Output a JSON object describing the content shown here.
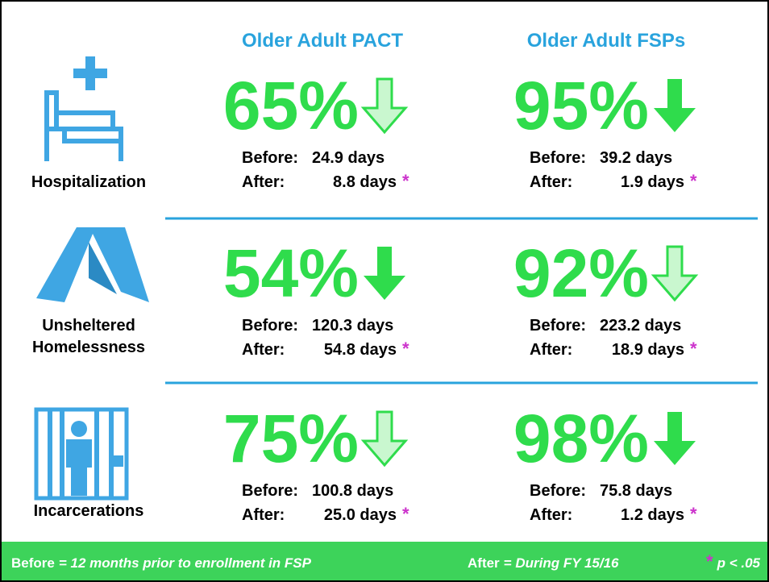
{
  "columns": [
    "Older Adult PACT",
    "Older Adult FSPs"
  ],
  "rows": [
    {
      "label": [
        "Hospitalization"
      ],
      "cells": [
        {
          "percent": "65%",
          "arrow": "hollow",
          "before_label": "Before:",
          "before": "24.9 days",
          "after_label": "After:",
          "after": "8.8 days",
          "mark": "*"
        },
        {
          "percent": "95%",
          "arrow": "solid",
          "before_label": "Before:",
          "before": "39.2 days",
          "after_label": "After:",
          "after": "1.9 days",
          "mark": "*"
        }
      ]
    },
    {
      "label": [
        "Unsheltered",
        "Homelessness"
      ],
      "cells": [
        {
          "percent": "54%",
          "arrow": "solid",
          "before_label": "Before:",
          "before": "120.3 days",
          "after_label": "After:",
          "after": "54.8 days",
          "mark": "*"
        },
        {
          "percent": "92%",
          "arrow": "hollow",
          "before_label": "Before:",
          "before": "223.2 days",
          "after_label": "After:",
          "after": "18.9 days",
          "mark": "*"
        }
      ]
    },
    {
      "label": [
        "Incarcerations"
      ],
      "cells": [
        {
          "percent": "75%",
          "arrow": "hollow",
          "before_label": "Before:",
          "before": "100.8 days",
          "after_label": "After:",
          "after": "25.0 days",
          "mark": "*"
        },
        {
          "percent": "98%",
          "arrow": "solid",
          "before_label": "Before:",
          "before": "75.8 days",
          "after_label": "After:",
          "after": "1.2 days",
          "mark": "*"
        }
      ]
    }
  ],
  "footer": {
    "before_term": "Before",
    "before_def": "= 12 months prior to enrollment in FSP",
    "after_term": "After",
    "after_def": "= During FY 15/16",
    "mark": "*",
    "mark_def": "p < .05"
  }
}
